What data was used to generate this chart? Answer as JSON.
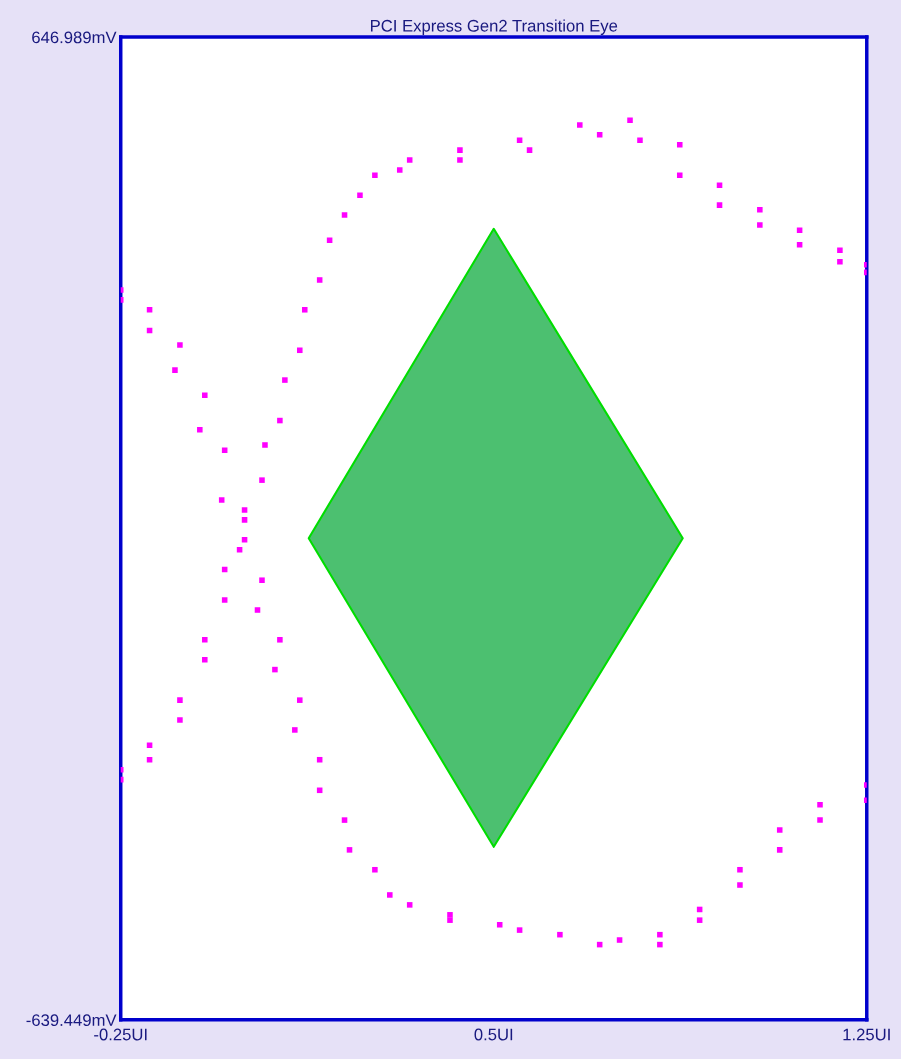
{
  "chart_data": {
    "type": "scatter",
    "title": "PCI Express Gen2 Transition Eye",
    "xlim": [
      -0.25,
      1.25
    ],
    "ylim": [
      -639.449,
      646.989
    ],
    "xticks": [
      {
        "value": -0.25,
        "label": "-0.25UI"
      },
      {
        "value": 0.5,
        "label": "0.5UI"
      },
      {
        "value": 1.25,
        "label": "1.25UI"
      }
    ],
    "yticks": [
      {
        "value": -639.449,
        "label": "-639.449mV"
      },
      {
        "value": 646.989,
        "label": "646.989mV"
      }
    ],
    "grid": false,
    "marker": "square",
    "series": [
      {
        "color": "#ff00ff",
        "x": [
          -0.25,
          -0.192,
          -0.131,
          -0.081,
          -0.041,
          -0.001,
          0.034,
          0.07,
          0.11,
          0.15,
          0.2,
          0.261,
          0.331,
          0.412,
          0.512,
          0.633,
          0.753,
          0.834,
          0.914,
          0.995,
          1.075,
          1.156,
          1.25
        ],
        "values": [
          316,
          290,
          244,
          178,
          106,
          15,
          -64,
          -142,
          -221,
          -299,
          -378,
          -443,
          -489,
          -509,
          -515,
          -528,
          -535,
          -528,
          -495,
          -443,
          -391,
          -358,
          -332
        ]
      },
      {
        "color": "#ff00ff",
        "x": [
          -0.25,
          -0.192,
          -0.141,
          -0.091,
          -0.047,
          -0.011,
          0.025,
          0.06,
          0.1,
          0.15,
          0.21,
          0.291,
          0.412,
          0.552,
          0.713,
          0.834,
          0.914,
          0.995,
          1.075,
          1.156,
          1.25
        ],
        "values": [
          303,
          263,
          211,
          133,
          41,
          -24,
          -103,
          -181,
          -260,
          -339,
          -417,
          -476,
          -502,
          -522,
          -541,
          -541,
          -509,
          -463,
          -417,
          -378,
          -352
        ]
      },
      {
        "color": "#ff00ff",
        "x": [
          -0.25,
          -0.192,
          -0.131,
          -0.081,
          -0.041,
          -0.001,
          0.034,
          0.07,
          0.11,
          0.15,
          0.2,
          0.261,
          0.331,
          0.432,
          0.552,
          0.673,
          0.774,
          0.874,
          0.954,
          1.035,
          1.115,
          1.196,
          1.25
        ],
        "values": [
          -325,
          -299,
          -247,
          -168,
          -90,
          -11,
          67,
          145,
          237,
          329,
          414,
          466,
          486,
          499,
          512,
          532,
          538,
          506,
          453,
          421,
          394,
          368,
          349
        ]
      },
      {
        "color": "#ff00ff",
        "x": [
          -0.25,
          -0.192,
          -0.131,
          -0.081,
          -0.041,
          -0.001,
          0.04,
          0.08,
          0.12,
          0.17,
          0.231,
          0.311,
          0.432,
          0.572,
          0.713,
          0.794,
          0.874,
          0.954,
          1.035,
          1.115,
          1.196,
          1.25
        ],
        "values": [
          -312,
          -280,
          -221,
          -142,
          -50,
          28,
          113,
          198,
          290,
          381,
          440,
          473,
          486,
          499,
          519,
          512,
          466,
          427,
          401,
          375,
          353,
          339
        ]
      },
      {
        "type": "area",
        "marker": "none",
        "color": "#4cc070",
        "x": [
          0.5,
          0.88,
          0.5,
          0.128,
          0.5
        ],
        "values": [
          396,
          -9,
          -413,
          -9,
          396
        ]
      }
    ]
  }
}
